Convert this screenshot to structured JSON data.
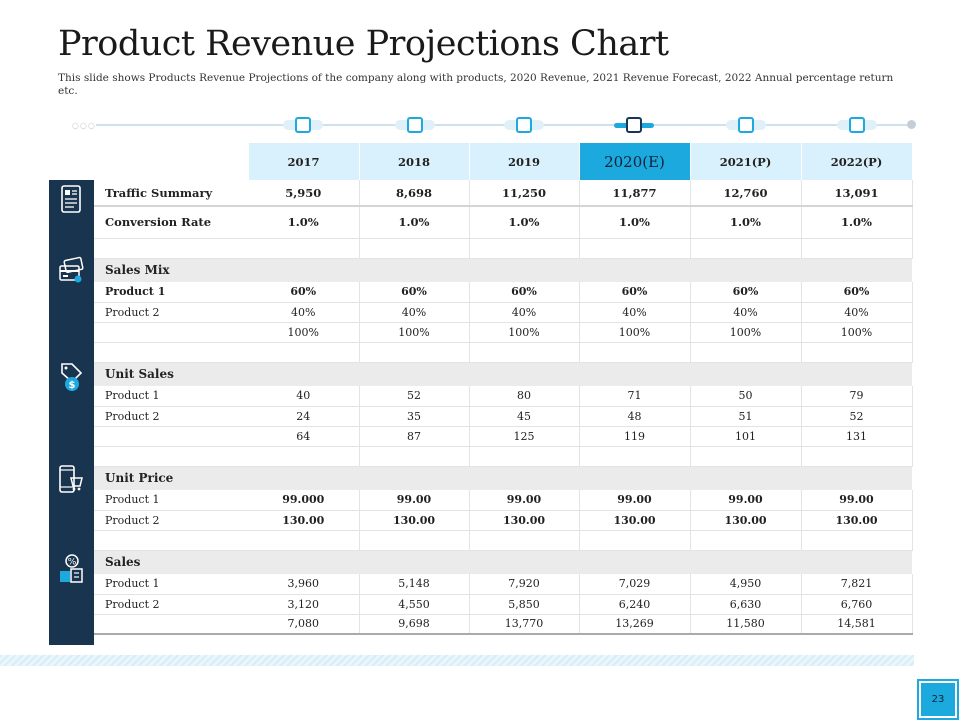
{
  "title": "Product Revenue Projections Chart",
  "subtitle": "This slide shows Products Revenue Projections of the company along with products, 2020 Revenue, 2021 Revenue Forecast, 2022 Annual percentage return etc.",
  "page_number": "23",
  "colors": {
    "accent": "#1ca9de",
    "dark": "#19344f",
    "header_bg": "#d9f1fc",
    "section_bg": "#ebebeb"
  },
  "timeline": {
    "icon": "timeline-node-icon",
    "highlighted_index": 3
  },
  "table": {
    "columns": [
      "2017",
      "2018",
      "2019",
      "2020(E)",
      "2021(P)",
      "2022(P)"
    ],
    "traffic_summary": {
      "label": "Traffic Summary",
      "values": [
        "5,950",
        "8,698",
        "11,250",
        "11,877",
        "12,760",
        "13,091"
      ]
    },
    "conversion_rate": {
      "label": "Conversion Rate",
      "values": [
        "1.0%",
        "1.0%",
        "1.0%",
        "1.0%",
        "1.0%",
        "1.0%"
      ]
    },
    "sales_mix": {
      "label": "Sales Mix",
      "rows": [
        {
          "label": "Product 1",
          "values": [
            "60%",
            "60%",
            "60%",
            "60%",
            "60%",
            "60%"
          ]
        },
        {
          "label": "Product 2",
          "values": [
            "40%",
            "40%",
            "40%",
            "40%",
            "40%",
            "40%"
          ]
        },
        {
          "label": "",
          "values": [
            "100%",
            "100%",
            "100%",
            "100%",
            "100%",
            "100%"
          ]
        }
      ]
    },
    "unit_sales": {
      "label": "Unit Sales",
      "rows": [
        {
          "label": "Product 1",
          "values": [
            "40",
            "52",
            "80",
            "71",
            "50",
            "79"
          ]
        },
        {
          "label": "Product 2",
          "values": [
            "24",
            "35",
            "45",
            "48",
            "51",
            "52"
          ]
        },
        {
          "label": "",
          "values": [
            "64",
            "87",
            "125",
            "119",
            "101",
            "131"
          ]
        }
      ]
    },
    "unit_price": {
      "label": "Unit Price",
      "rows": [
        {
          "label": "Product 1",
          "values": [
            "99.000",
            "99.00",
            "99.00",
            "99.00",
            "99.00",
            "99.00"
          ]
        },
        {
          "label": "Product 2",
          "values": [
            "130.00",
            "130.00",
            "130.00",
            "130.00",
            "130.00",
            "130.00"
          ]
        }
      ]
    },
    "sales": {
      "label": "Sales",
      "rows": [
        {
          "label": "Product 1",
          "values": [
            "3,960",
            "5,148",
            "7,920",
            "7,029",
            "4,950",
            "7,821"
          ]
        },
        {
          "label": "Product 2",
          "values": [
            "3,120",
            "4,550",
            "5,850",
            "6,240",
            "6,630",
            "6,760"
          ]
        },
        {
          "label": "",
          "values": [
            "7,080",
            "9,698",
            "13,770",
            "13,269",
            "11,580",
            "14,581"
          ]
        }
      ]
    }
  },
  "sidebar_icons": [
    "report-document-icon",
    "sales-mix-cards-icon",
    "price-tag-dollar-icon",
    "mobile-shopping-icon",
    "percentage-sale-icon"
  ]
}
